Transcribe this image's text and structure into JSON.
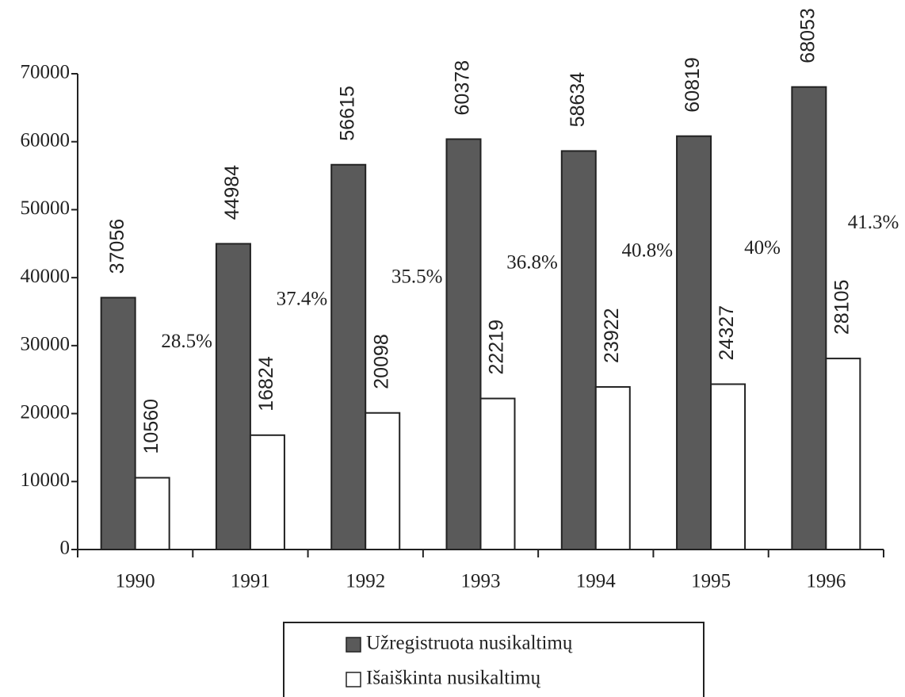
{
  "chart_data": {
    "type": "bar",
    "categories": [
      "1990",
      "1991",
      "1992",
      "1993",
      "1994",
      "1995",
      "1996"
    ],
    "series": [
      {
        "name": "Užregistruota nusikaltimų",
        "color": "#5a5a5a",
        "values": [
          37056,
          44984,
          56615,
          60378,
          58634,
          60819,
          68053
        ]
      },
      {
        "name": "Išaiškinta nusikaltimų",
        "color": "#ffffff",
        "values": [
          10560,
          16824,
          20098,
          22219,
          23922,
          24327,
          28105
        ]
      }
    ],
    "annotations": [
      "28.5%",
      "37.4%",
      "35.5%",
      "36.8%",
      "40.8%",
      "40%",
      "41.3%"
    ],
    "ylim": [
      0,
      70000
    ],
    "yticks": [
      0,
      10000,
      20000,
      30000,
      40000,
      50000,
      60000,
      70000
    ],
    "grid": false,
    "legend": "bottom"
  }
}
